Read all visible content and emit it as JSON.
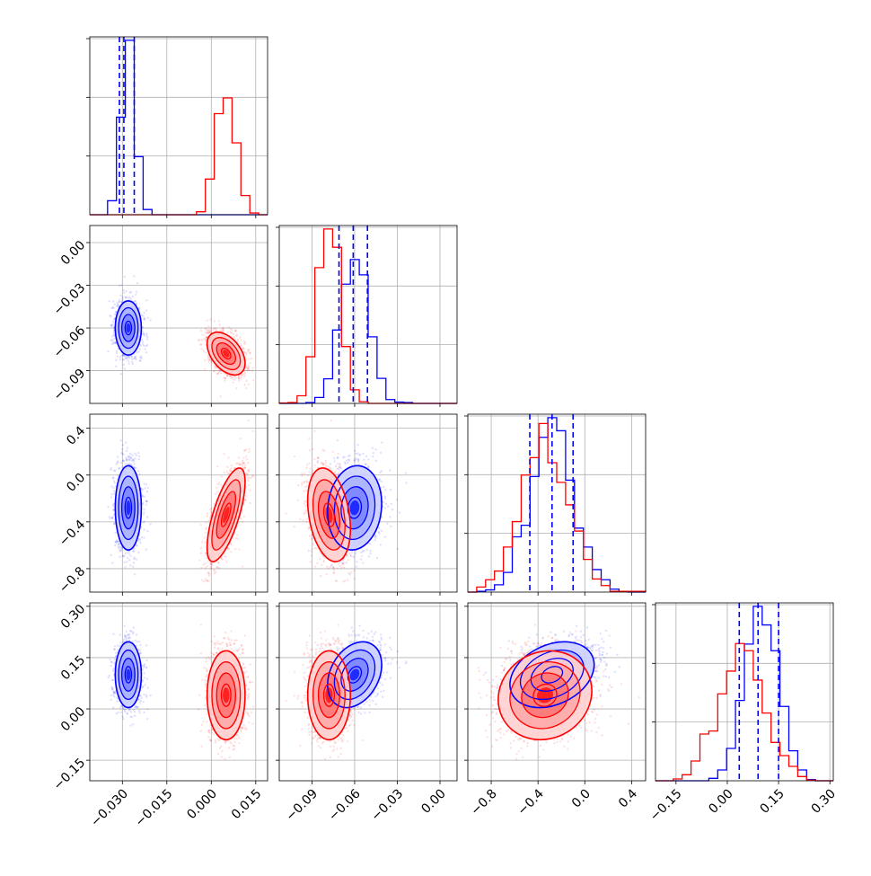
{
  "chart_data": {
    "type": "corner",
    "parameters": [
      {
        "ticks": [
          -0.03,
          -0.015,
          0.0,
          0.015
        ],
        "tick_labels": [
          "−0.030",
          "−0.015",
          "0.000",
          "0.015"
        ],
        "range": [
          -0.041,
          0.019
        ]
      },
      {
        "ticks": [
          -0.09,
          -0.06,
          -0.03,
          0.0
        ],
        "tick_labels": [
          "−0.09",
          "−0.06",
          "−0.03",
          "0.00"
        ],
        "range": [
          -0.113,
          0.012
        ]
      },
      {
        "ticks": [
          -0.8,
          -0.4,
          0.0,
          0.4
        ],
        "tick_labels": [
          "−0.8",
          "−0.4",
          "0.0",
          "0.4"
        ],
        "range": [
          -1.0,
          0.52
        ]
      },
      {
        "ticks": [
          -0.15,
          0.0,
          0.15,
          0.3
        ],
        "tick_labels": [
          "−0.15",
          "0.00",
          "0.15",
          "0.30"
        ],
        "range": [
          -0.21,
          0.31
        ]
      }
    ],
    "series": [
      {
        "color": "#0000ff",
        "mean": [
          -0.028,
          -0.06,
          -0.28,
          0.1
        ],
        "sd": [
          0.0022,
          0.0095,
          0.18,
          0.048
        ],
        "correlation": [
          [
            1,
            0,
            0,
            0
          ],
          [
            0,
            1,
            0.1,
            0.3
          ],
          [
            0,
            0.1,
            1,
            0.3
          ],
          [
            0,
            0.3,
            0.3,
            1
          ]
        ],
        "quantiles_16_50_84": [
          [
            -0.031,
            -0.0295,
            -0.026
          ],
          [
            -0.071,
            -0.061,
            -0.051
          ],
          [
            -0.47,
            -0.28,
            -0.1
          ],
          [
            0.035,
            0.09,
            0.15
          ]
        ]
      },
      {
        "color": "#ff0000",
        "mean": [
          0.005,
          -0.078,
          -0.34,
          0.04
        ],
        "sd": [
          0.0032,
          0.0075,
          0.2,
          0.065
        ],
        "correlation": [
          [
            1,
            -0.45,
            0.7,
            0
          ],
          [
            -0.45,
            1,
            -0.3,
            0
          ],
          [
            0.7,
            -0.3,
            1,
            0.1
          ],
          [
            0,
            0,
            0.1,
            1
          ]
        ]
      }
    ],
    "contour_levels_sigma": [
      0.5,
      1.0,
      1.5,
      2.0
    ],
    "grid": true
  }
}
